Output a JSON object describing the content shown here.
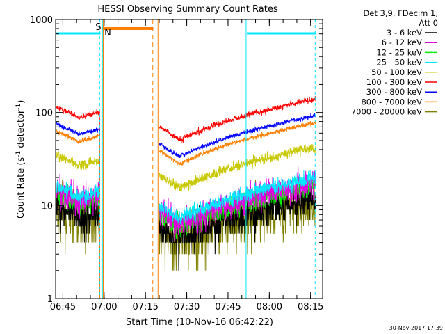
{
  "chart_data": {
    "type": "line",
    "title": "HESSI Observing Summary Count Rates",
    "xlabel": "Start Time (10-Nov-16 06:42:22)",
    "ylabel": "Count Rate (s^-1 detector^-1)",
    "ylabel_parts": {
      "pre": "Count Rate (s",
      "sup1": "-1",
      "mid": " detector",
      "sup2": "-1",
      "post": ")"
    },
    "yscale": "log",
    "xlim_minutes": [
      0,
      97
    ],
    "x_unit": "minutes after 06:42:22",
    "ylim": [
      1,
      1000
    ],
    "x_ticks": [
      "06:45",
      "07:00",
      "07:15",
      "07:30",
      "07:45",
      "08:00",
      "08:15"
    ],
    "y_ticks": [
      "1",
      "10",
      "100",
      "1000"
    ],
    "legend_header": [
      "Det 3,9, FDecim 1,",
      "Att 0"
    ],
    "series": [
      {
        "name": "3 - 6 keV",
        "color": "#000000"
      },
      {
        "name": "6 - 12 keV",
        "color": "#e000e0"
      },
      {
        "name": "12 - 25 keV",
        "color": "#00ee00"
      },
      {
        "name": "25 - 50 keV",
        "color": "#00e8ff"
      },
      {
        "name": "50 - 100 keV",
        "color": "#c8c800"
      },
      {
        "name": "100 - 300 keV",
        "color": "#ff0000"
      },
      {
        "name": "300 - 800 keV",
        "color": "#0000ff"
      },
      {
        "name": "800 - 7000 keV",
        "color": "#ff8000"
      },
      {
        "name": "7000 - 20000 keV",
        "color": "#808000"
      }
    ],
    "flags": [
      {
        "label": "S",
        "color": "#ff8000"
      },
      {
        "label": "N",
        "color": "#00e8ff"
      }
    ],
    "timestamp": "30-Nov-2017 17:39"
  }
}
